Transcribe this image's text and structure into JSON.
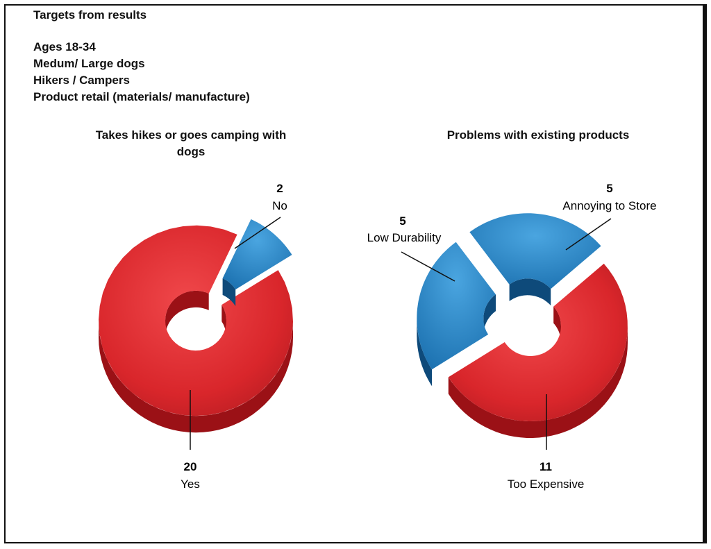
{
  "header": {
    "title": "Targets from results",
    "targets": [
      "Ages 18-34",
      "Medum/ Large dogs",
      "Hikers / Campers",
      "Product retail (materials/ manufacture)"
    ]
  },
  "colors": {
    "red": "#d9262b",
    "red_dark": "#9b1116",
    "blue": "#1d7bbf",
    "blue_dark": "#0e4a7a"
  },
  "chart_data": [
    {
      "type": "pie",
      "title": "Takes hikes or goes camping with dogs",
      "categories": [
        "Yes",
        "No"
      ],
      "values": [
        20,
        2
      ],
      "labels": [
        {
          "value": "20",
          "text": "Yes"
        },
        {
          "value": "2",
          "text": "No"
        }
      ]
    },
    {
      "type": "pie",
      "title": "Problems with existing products",
      "categories": [
        "Low Durability",
        "Annoying to Store",
        "Too Expensive"
      ],
      "values": [
        5,
        5,
        11
      ],
      "labels": [
        {
          "value": "5",
          "text": "Low Durability"
        },
        {
          "value": "5",
          "text": "Annoying to Store"
        },
        {
          "value": "11",
          "text": "Too Expensive"
        }
      ]
    }
  ]
}
